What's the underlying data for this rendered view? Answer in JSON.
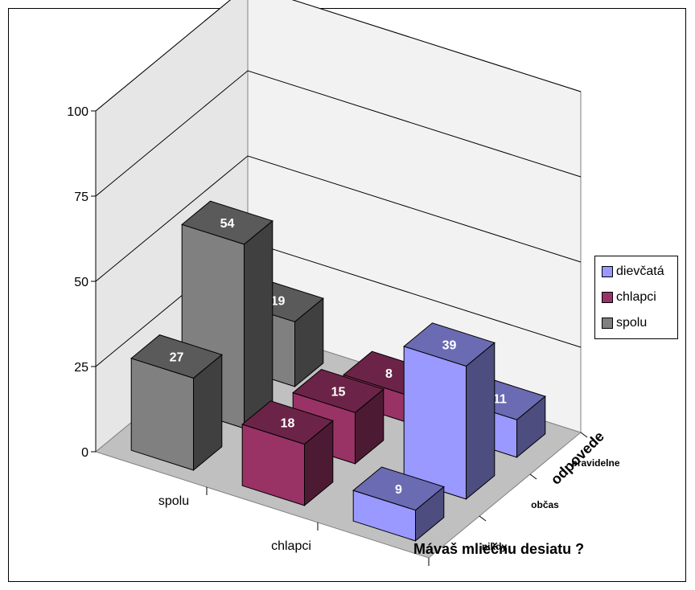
{
  "chart_data": {
    "type": "bar",
    "subtype": "3d-column",
    "title": "",
    "xlabel": "Mávaš mliečnu desiatu ?",
    "zlabel": "odpovede",
    "ylim": [
      0,
      100
    ],
    "yticks": [
      "0",
      "25",
      "50",
      "75",
      "100"
    ],
    "groups": [
      "spolu",
      "chlapci",
      "dievčatá"
    ],
    "responses": [
      "nikdy",
      "občas",
      "pravidelne"
    ],
    "series": [
      {
        "name": "dievčatá",
        "color": "#9999ff",
        "values": {
          "nikdy": 9,
          "občas": 39,
          "pravidelne": 11
        }
      },
      {
        "name": "chlapci",
        "color": "#993366",
        "values": {
          "nikdy": 18,
          "občas": 15,
          "pravidelne": 8
        }
      },
      {
        "name": "spolu",
        "color": "#808080",
        "values": {
          "nikdy": 27,
          "občas": 54,
          "pravidelne": 19
        }
      }
    ],
    "legend": {
      "position": "right",
      "entries": [
        "dievčatá",
        "chlapci",
        "spolu"
      ]
    },
    "grid": true
  }
}
